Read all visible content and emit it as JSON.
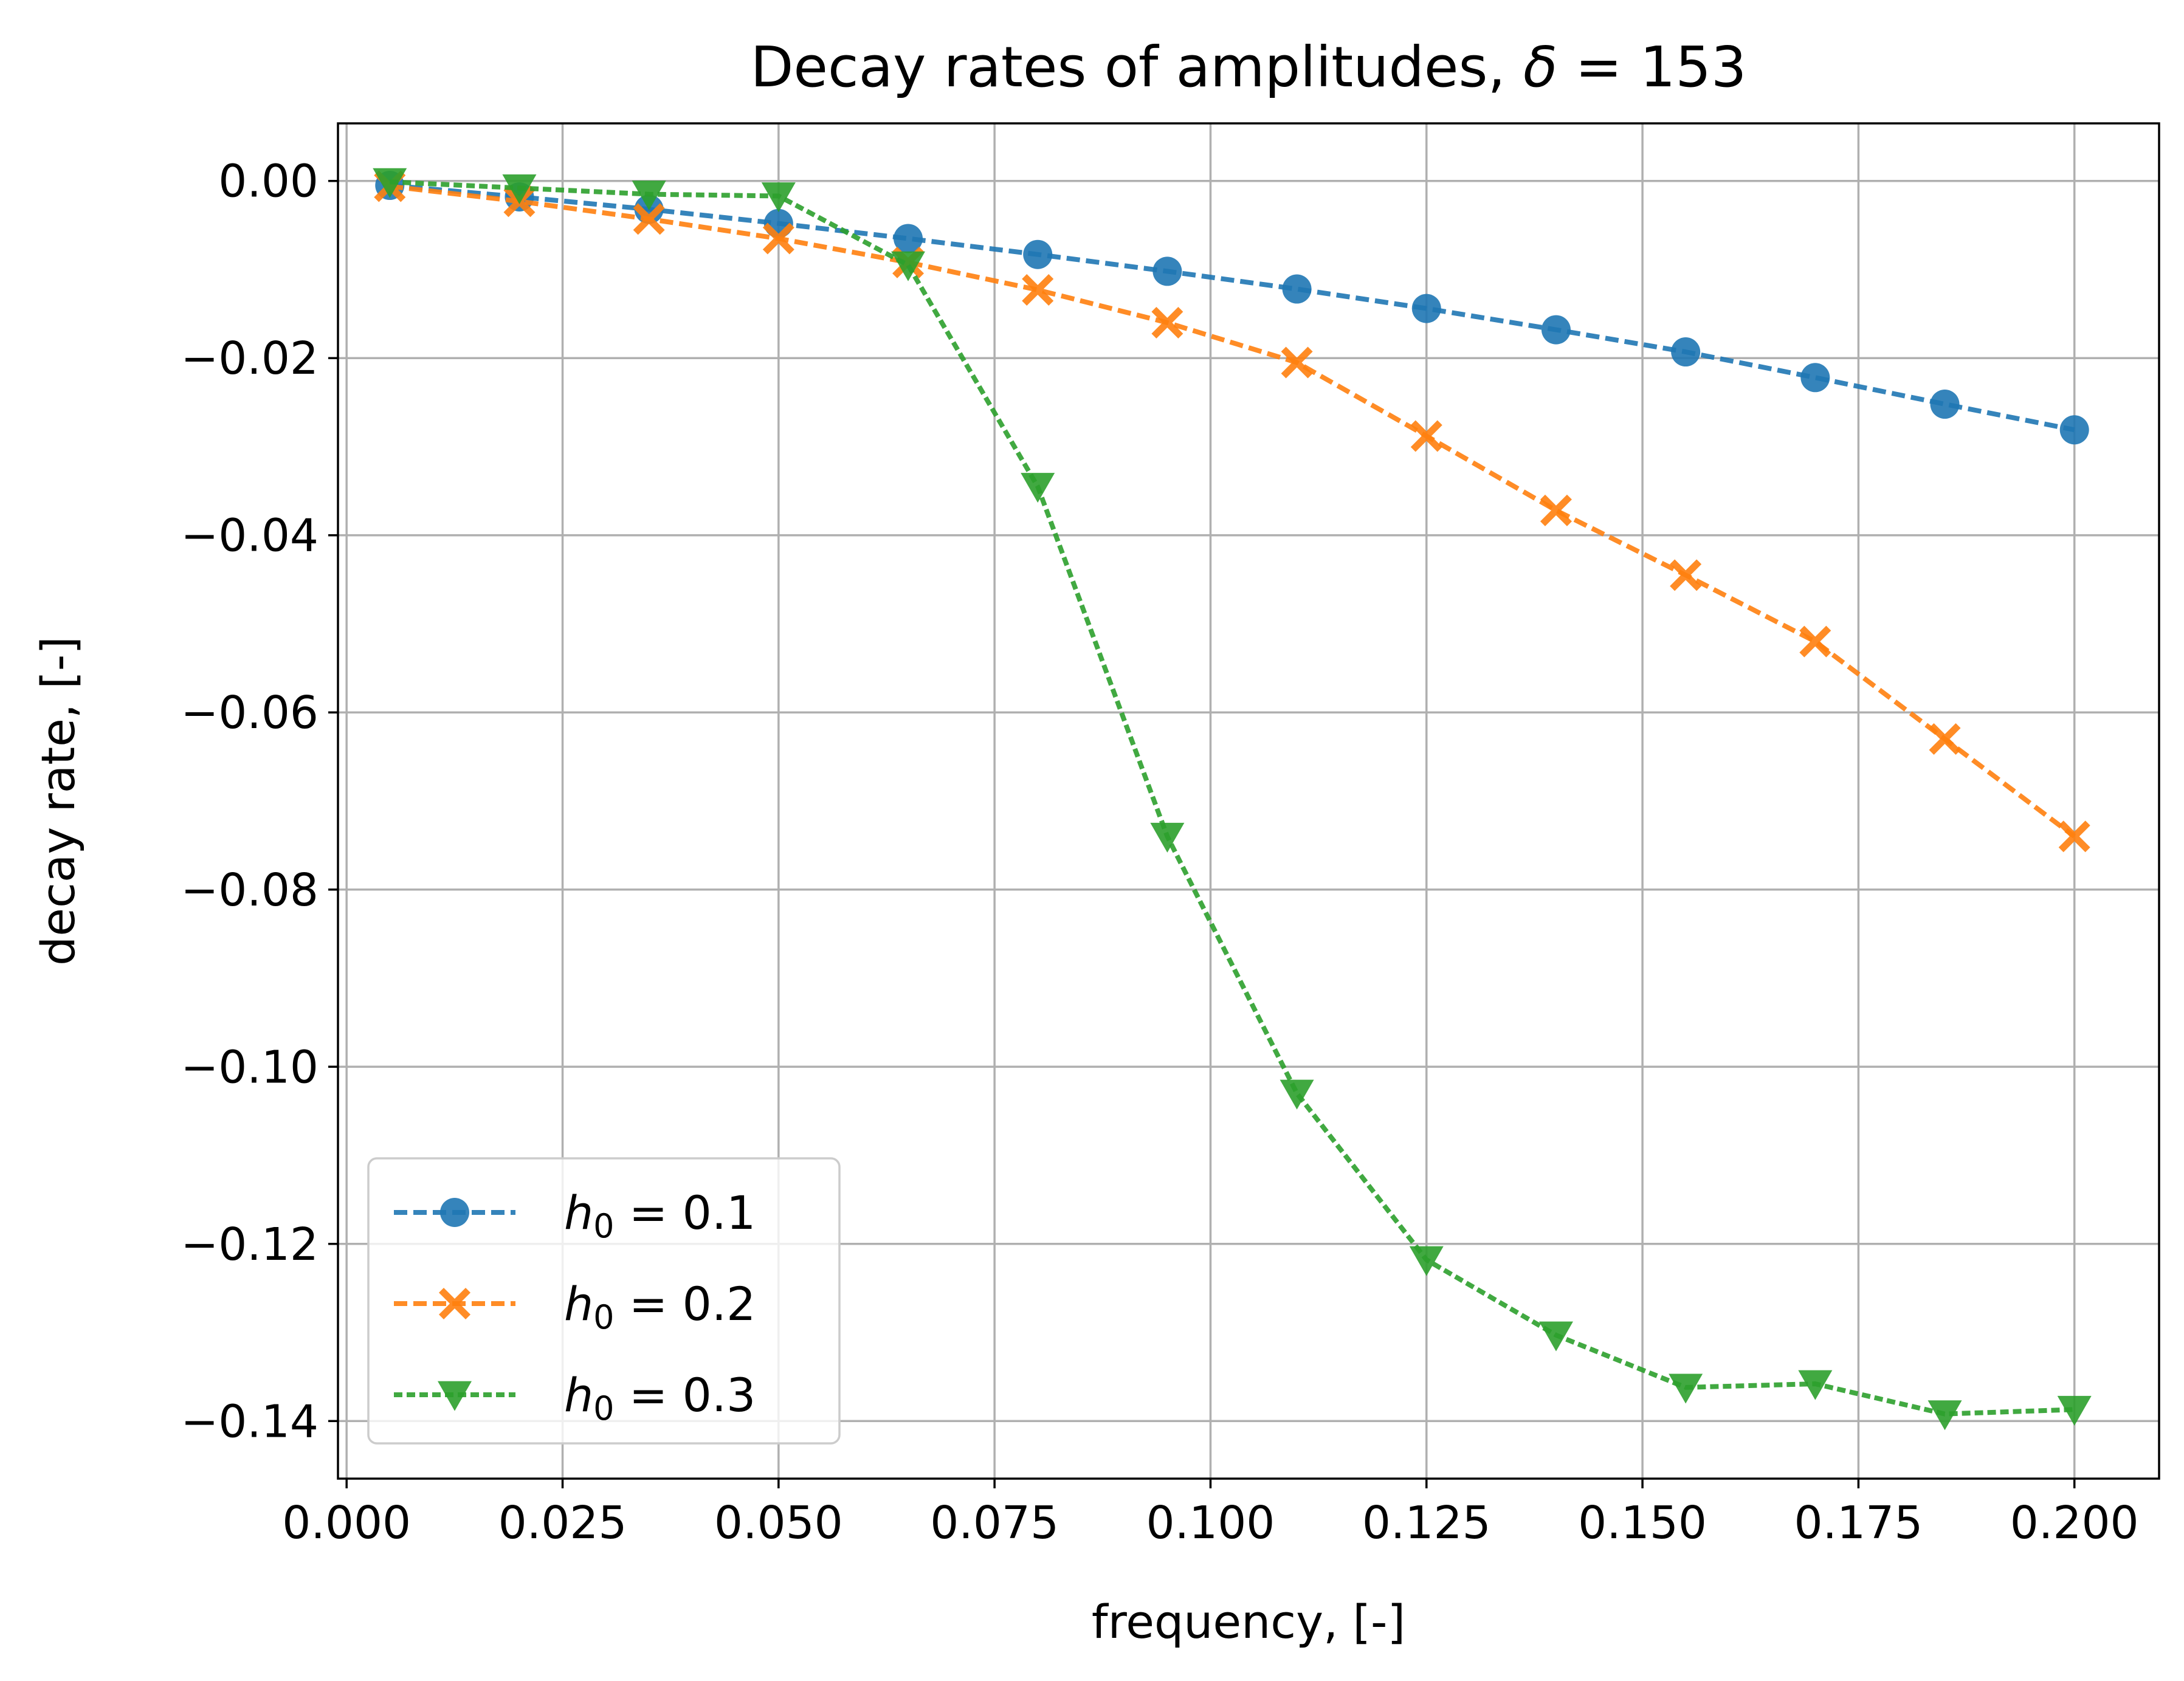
{
  "chart_data": {
    "type": "line",
    "title_main": "Decay rates of amplitudes, ",
    "title_symbol": "δ",
    "title_value": " = 153",
    "xlabel": "frequency, [-]",
    "ylabel": "decay rate, [-]",
    "xlim": [
      -0.001,
      0.2098
    ],
    "ylim": [
      -0.1465,
      0.0065
    ],
    "x_ticks": [
      0.0,
      0.025,
      0.05,
      0.075,
      0.1,
      0.125,
      0.15,
      0.175,
      0.2
    ],
    "x_tick_labels": [
      "0.000",
      "0.025",
      "0.050",
      "0.075",
      "0.100",
      "0.125",
      "0.150",
      "0.175",
      "0.200"
    ],
    "y_ticks": [
      0.0,
      -0.02,
      -0.04,
      -0.06,
      -0.08,
      -0.1,
      -0.12,
      -0.14
    ],
    "y_tick_labels": [
      "0.00",
      "−0.02",
      "−0.04",
      "−0.06",
      "−0.08",
      "−0.10",
      "−0.12",
      "−0.14"
    ],
    "grid": true,
    "legend_position": "lower-left",
    "x": [
      0.005,
      0.02,
      0.035,
      0.05,
      0.065,
      0.08,
      0.095,
      0.11,
      0.125,
      0.14,
      0.155,
      0.17,
      0.185,
      0.2
    ],
    "series": [
      {
        "name": "h0 = 0.1",
        "legend_symbol": "h",
        "legend_subscript": "0",
        "legend_value": " = 0.1",
        "color": "#1f77b4",
        "marker": "circle",
        "dash": "long",
        "values": [
          -0.0005,
          -0.0018,
          -0.0032,
          -0.0048,
          -0.0065,
          -0.0083,
          -0.0102,
          -0.0122,
          -0.0144,
          -0.0168,
          -0.0193,
          -0.0222,
          -0.0252,
          -0.0281
        ]
      },
      {
        "name": "h0 = 0.2",
        "legend_symbol": "h",
        "legend_subscript": "0",
        "legend_value": " = 0.2",
        "color": "#ff7f0e",
        "marker": "x-filled",
        "dash": "long",
        "values": [
          -0.0006,
          -0.0023,
          -0.0043,
          -0.0065,
          -0.0092,
          -0.0123,
          -0.016,
          -0.0205,
          -0.0288,
          -0.0372,
          -0.0445,
          -0.052,
          -0.063,
          -0.074
        ]
      },
      {
        "name": "h0 = 0.3",
        "legend_symbol": "h",
        "legend_subscript": "0",
        "legend_value": " = 0.3",
        "color": "#2ca02c",
        "marker": "triangle-down",
        "dash": "short",
        "values": [
          -0.0001,
          -0.0008,
          -0.0015,
          -0.0017,
          -0.0095,
          -0.0345,
          -0.074,
          -0.103,
          -0.1218,
          -0.1303,
          -0.1362,
          -0.1358,
          -0.1392,
          -0.1387
        ]
      }
    ]
  }
}
